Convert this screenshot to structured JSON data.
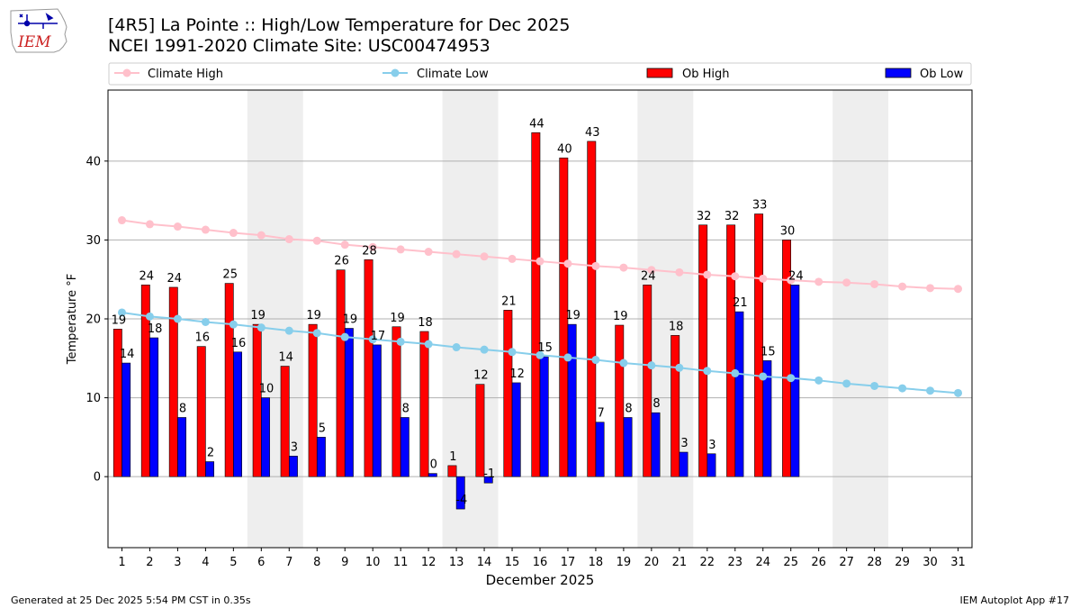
{
  "header": {
    "title_line1": "[4R5] La Pointe :: High/Low Temperature for Dec 2025",
    "title_line2": "NCEI 1991-2020 Climate Site: USC00474953",
    "logo_text": "IEM"
  },
  "footer": {
    "generated": "Generated at 25 Dec 2025 5:54 PM CST in 0.35s",
    "app": "IEM Autoplot App #17"
  },
  "colors": {
    "ob_high": "#ff0000",
    "ob_low": "#0000ff",
    "climate_high": "#ffc0cb",
    "climate_low": "#87ceeb",
    "weekend_band": "#eeeeee",
    "grid": "#b0b0b0"
  },
  "chart_data": {
    "type": "bar",
    "xlabel": "December 2025",
    "ylabel": "Temperature °F",
    "xlim": [
      0.5,
      31.5
    ],
    "ylim": [
      -9,
      49
    ],
    "yticks": [
      0,
      10,
      20,
      30,
      40
    ],
    "grid": "horizontal",
    "legend_position": "top",
    "shaded_day_ranges": [
      [
        5.5,
        7.5
      ],
      [
        12.5,
        14.5
      ],
      [
        19.5,
        21.5
      ],
      [
        26.5,
        28.5
      ]
    ],
    "days": [
      1,
      2,
      3,
      4,
      5,
      6,
      7,
      8,
      9,
      10,
      11,
      12,
      13,
      14,
      15,
      16,
      17,
      18,
      19,
      20,
      21,
      22,
      23,
      24,
      25,
      26,
      27,
      28,
      29,
      30,
      31
    ],
    "legend": [
      "Climate High",
      "Climate Low",
      "Ob High",
      "Ob Low"
    ],
    "ob_high": {
      "name": "Ob High",
      "values": [
        19,
        24,
        24,
        16,
        25,
        19,
        14,
        19,
        26,
        28,
        19,
        18,
        1,
        12,
        21,
        44,
        40,
        43,
        19,
        24,
        18,
        32,
        32,
        33,
        30
      ],
      "plot_values": [
        18.7,
        24.3,
        24.0,
        16.5,
        24.5,
        19.3,
        14.0,
        19.3,
        26.2,
        27.5,
        19.0,
        18.4,
        1.4,
        11.7,
        21.1,
        43.6,
        40.4,
        42.5,
        19.2,
        24.3,
        17.9,
        31.9,
        31.9,
        33.3,
        30.0
      ]
    },
    "ob_low": {
      "name": "Ob Low",
      "values": [
        14,
        18,
        8,
        2,
        16,
        10,
        3,
        5,
        19,
        17,
        8,
        0,
        -4,
        -1,
        12,
        15,
        19,
        7,
        8,
        8,
        3,
        3,
        21,
        15,
        24
      ],
      "plot_values": [
        14.4,
        17.6,
        7.5,
        1.9,
        15.8,
        10.0,
        2.6,
        5.0,
        18.8,
        16.7,
        7.5,
        0.4,
        -4.1,
        -0.8,
        11.9,
        15.2,
        19.3,
        6.9,
        7.5,
        8.1,
        3.1,
        2.9,
        20.9,
        14.7,
        24.3
      ]
    },
    "climate_high": {
      "name": "Climate High",
      "values": [
        32.5,
        32.0,
        31.7,
        31.3,
        30.9,
        30.6,
        30.1,
        29.9,
        29.4,
        29.1,
        28.8,
        28.5,
        28.2,
        27.9,
        27.6,
        27.3,
        27.0,
        26.7,
        26.5,
        26.2,
        25.9,
        25.6,
        25.4,
        25.1,
        24.9,
        24.7,
        24.6,
        24.4,
        24.1,
        23.9,
        23.8
      ]
    },
    "climate_low": {
      "name": "Climate Low",
      "values": [
        20.8,
        20.3,
        20.0,
        19.6,
        19.3,
        18.9,
        18.5,
        18.2,
        17.7,
        17.4,
        17.1,
        16.8,
        16.4,
        16.1,
        15.8,
        15.4,
        15.1,
        14.8,
        14.4,
        14.1,
        13.8,
        13.4,
        13.1,
        12.7,
        12.5,
        12.2,
        11.8,
        11.5,
        11.2,
        10.9,
        10.6
      ]
    }
  }
}
